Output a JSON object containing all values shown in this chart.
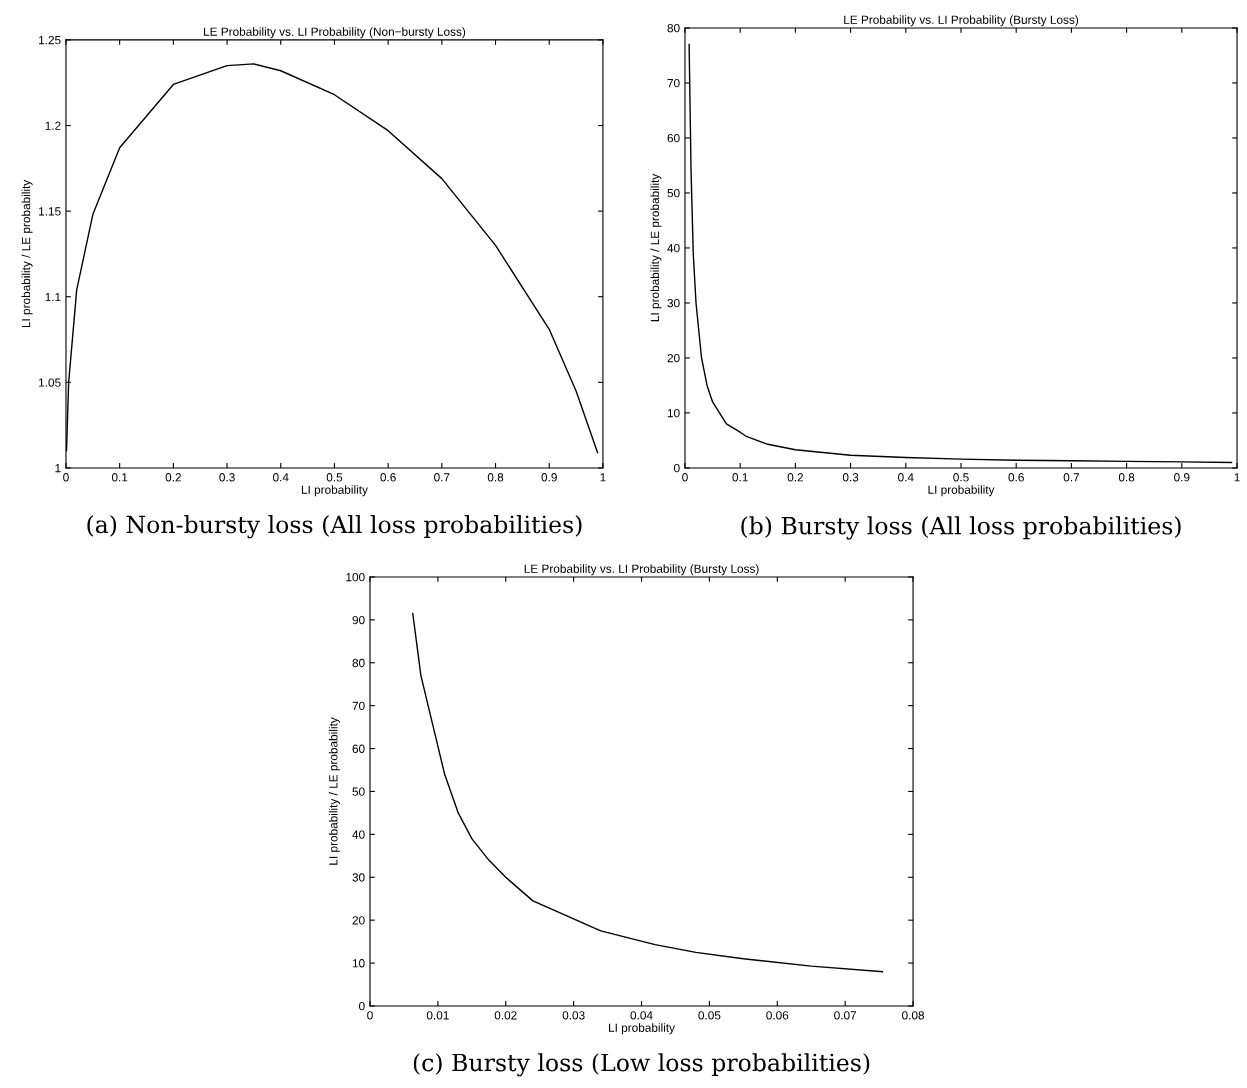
{
  "chart_data": [
    {
      "type": "line",
      "title": "LE Probability vs. LI Probability (Non−bursty Loss)",
      "xlabel": "LI probability",
      "ylabel": "LI probability / LE probability",
      "annotations": [
        "(a) Non-bursty loss (All loss probabilities)"
      ],
      "series": [
        {
          "color": "#000000",
          "x": [
            0.001,
            0.005,
            0.02,
            0.05,
            0.1,
            0.2,
            0.3,
            0.35,
            0.4,
            0.5,
            0.6,
            0.7,
            0.8,
            0.9,
            0.95,
            0.99
          ],
          "values": [
            1.01,
            1.05,
            1.104,
            1.148,
            1.187,
            1.224,
            1.235,
            1.236,
            1.232,
            1.218,
            1.197,
            1.169,
            1.13,
            1.081,
            1.045,
            1.009
          ]
        }
      ],
      "xlim": [
        0,
        1
      ],
      "ylim": [
        1,
        1.25
      ],
      "xticks": [
        0,
        0.1,
        0.2,
        0.3,
        0.4,
        0.5,
        0.6,
        0.7,
        0.8,
        0.9,
        1
      ],
      "yticks": [
        1,
        1.05,
        1.1,
        1.15,
        1.2,
        1.25
      ],
      "grid": false,
      "legend": false
    },
    {
      "type": "line",
      "title": "LE Probability vs. LI Probability (Bursty Loss)",
      "xlabel": "LI probability",
      "ylabel": "LI probability / LE probability",
      "annotations": [
        "(b) Bursty loss (All loss probabilities)"
      ],
      "series": [
        {
          "color": "#000000",
          "x": [
            0.0075,
            0.011,
            0.015,
            0.02,
            0.03,
            0.04,
            0.05,
            0.075,
            0.1,
            0.11,
            0.15,
            0.2,
            0.3,
            0.4,
            0.5,
            0.6,
            0.7,
            0.8,
            0.9,
            0.99
          ],
          "values": [
            77,
            54,
            39,
            30,
            20,
            15,
            12,
            8,
            6.5,
            5.8,
            4.3,
            3.3,
            2.3,
            1.9,
            1.6,
            1.4,
            1.3,
            1.2,
            1.1,
            1.0
          ]
        }
      ],
      "xlim": [
        0,
        1
      ],
      "ylim": [
        0,
        80
      ],
      "xticks": [
        0,
        0.1,
        0.2,
        0.3,
        0.4,
        0.5,
        0.6,
        0.7,
        0.8,
        0.9,
        1
      ],
      "yticks": [
        0,
        10,
        20,
        30,
        40,
        50,
        60,
        70,
        80
      ],
      "grid": false,
      "legend": false
    },
    {
      "type": "line",
      "title": "LE Probability vs. LI Probability (Bursty Loss)",
      "xlabel": "LI probability",
      "ylabel": "LI probability / LE probability",
      "annotations": [
        "(c) Bursty loss (Low loss probabilities)"
      ],
      "series": [
        {
          "color": "#000000",
          "x": [
            0.0063,
            0.0075,
            0.011,
            0.013,
            0.015,
            0.0175,
            0.02,
            0.024,
            0.034,
            0.042,
            0.048,
            0.055,
            0.065,
            0.0755
          ],
          "values": [
            91.5,
            77,
            54,
            45,
            39,
            34,
            30,
            24.5,
            17.5,
            14.3,
            12.5,
            11,
            9.3,
            8
          ]
        }
      ],
      "xlim": [
        0,
        0.08
      ],
      "ylim": [
        0,
        100
      ],
      "xticks": [
        0,
        0.01,
        0.02,
        0.03,
        0.04,
        0.05,
        0.06,
        0.07,
        0.08
      ],
      "yticks": [
        0,
        10,
        20,
        30,
        40,
        50,
        60,
        70,
        80,
        90,
        100
      ],
      "grid": false,
      "legend": false
    }
  ]
}
